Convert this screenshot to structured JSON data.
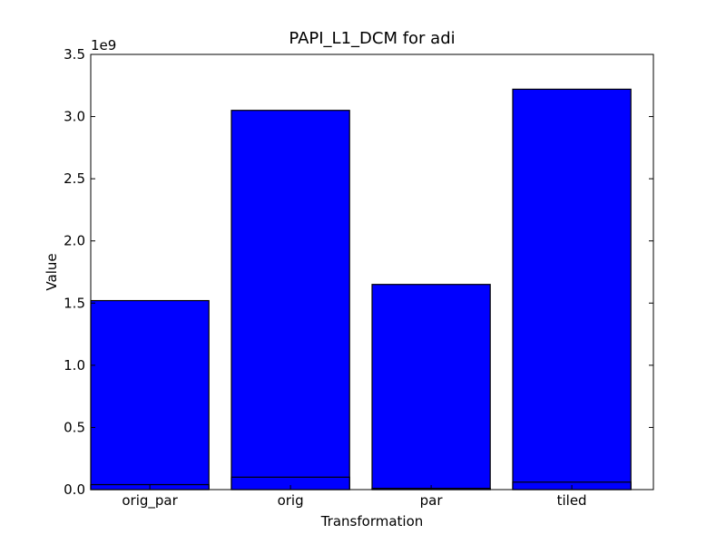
{
  "chart_data": {
    "type": "bar",
    "title": "PAPI_L1_DCM for adi",
    "xlabel": "Transformation",
    "ylabel": "Value",
    "y_multiplier_label": "1e9",
    "categories": [
      "orig_par",
      "orig",
      "par",
      "tiled"
    ],
    "values": [
      1.52,
      3.05,
      1.65,
      3.22
    ],
    "overlay_segments": [
      0.04,
      0.1,
      0.01,
      0.06
    ],
    "ylim": [
      0,
      3.5
    ],
    "yticks": [
      0.0,
      0.5,
      1.0,
      1.5,
      2.0,
      2.5,
      3.0,
      3.5
    ],
    "ytick_labels": [
      "0.0",
      "0.5",
      "1.0",
      "1.5",
      "2.0",
      "2.5",
      "3.0",
      "3.5"
    ],
    "bar_color": "#0000ff",
    "edge_color": "#000000",
    "grid": false
  }
}
